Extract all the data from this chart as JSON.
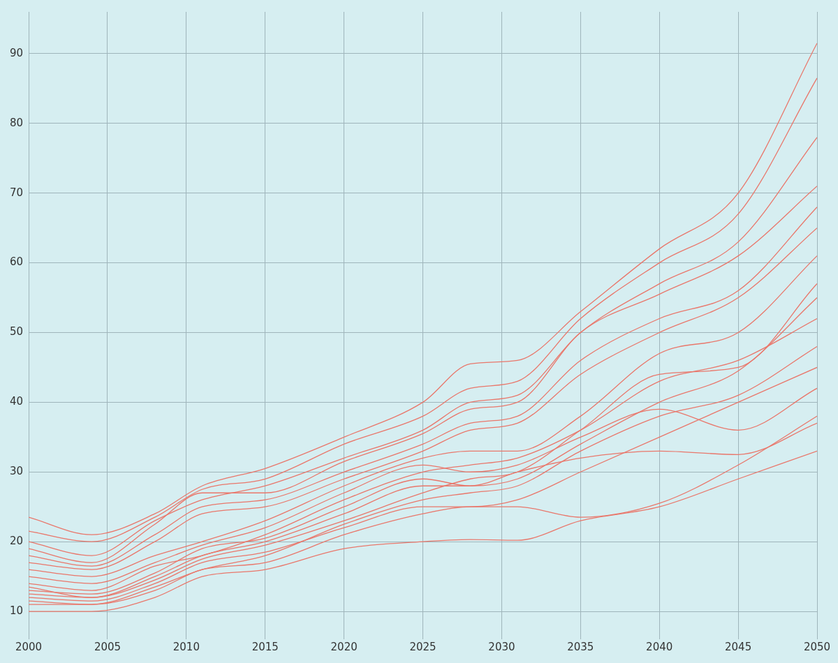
{
  "chart_data": {
    "type": "line",
    "x": [
      2000,
      2004,
      2008,
      2011,
      2015,
      2020,
      2025,
      2028,
      2031,
      2035,
      2040,
      2045,
      2050
    ],
    "xlim": [
      2000,
      2050
    ],
    "xticks": [
      2000,
      2005,
      2010,
      2015,
      2020,
      2025,
      2030,
      2035,
      2040,
      2045,
      2050
    ],
    "ylim": [
      6,
      96
    ],
    "yticks": [
      10,
      20,
      30,
      40,
      50,
      60,
      70,
      80,
      90
    ],
    "grid": true,
    "legend": false,
    "marker": "none",
    "line_style": "solid",
    "series": [
      {
        "color": "#e9776b",
        "values": [
          19,
          17,
          22.5,
          27,
          27,
          31.5,
          35.5,
          39,
          40,
          50,
          55.5,
          61,
          71
        ]
      },
      {
        "color": "#e9776b",
        "values": [
          23.5,
          21,
          24,
          28,
          30.5,
          35,
          40,
          45.5,
          46,
          53,
          62,
          70,
          91.5
        ]
      },
      {
        "color": "#e9776b",
        "values": [
          21.5,
          20,
          23.5,
          27.5,
          29,
          34,
          38,
          42,
          43,
          52,
          60,
          67,
          86.5
        ]
      },
      {
        "color": "#e9776b",
        "values": [
          10,
          10,
          12,
          15,
          16,
          19,
          20,
          20.3,
          20.2,
          23,
          25,
          29,
          33
        ]
      },
      {
        "color": "#e9776b",
        "values": [
          13,
          12.5,
          15.5,
          19,
          20.5,
          25,
          29,
          28,
          29,
          34,
          40,
          44.5,
          55
        ]
      },
      {
        "color": "#e9776b",
        "values": [
          16,
          15,
          18,
          20,
          23,
          28,
          32,
          33,
          33,
          38,
          47,
          50,
          61
        ]
      },
      {
        "color": "#e9776b",
        "values": [
          12,
          11.5,
          14,
          17,
          18.5,
          22,
          25,
          25,
          26,
          30,
          35,
          40,
          45
        ]
      },
      {
        "color": "#e9776b",
        "values": [
          11,
          11,
          13,
          16,
          17,
          21,
          24,
          25,
          25,
          23.5,
          25.5,
          31,
          38
        ]
      },
      {
        "color": "#e9776b",
        "values": [
          14,
          13,
          16.5,
          18,
          21,
          26,
          30,
          31,
          32,
          36,
          43,
          46,
          52
        ]
      },
      {
        "color": "#e9776b",
        "values": [
          17,
          16,
          20,
          24,
          25,
          29,
          33,
          36,
          37,
          44,
          50,
          55,
          65
        ]
      },
      {
        "color": "#e9776b",
        "values": [
          20,
          18,
          23,
          26,
          28,
          32,
          36,
          40,
          41,
          50,
          57,
          63,
          78
        ]
      },
      {
        "color": "#e9776b",
        "values": [
          11.5,
          11,
          13.5,
          16,
          18,
          22.5,
          26,
          27,
          28,
          33,
          38,
          41,
          48
        ]
      },
      {
        "color": "#e9776b",
        "values": [
          15,
          14,
          17,
          19.5,
          22,
          27,
          31,
          30,
          31,
          35,
          39,
          36,
          42
        ]
      },
      {
        "color": "#e9776b",
        "values": [
          13.5,
          12,
          15,
          18,
          20,
          24,
          28,
          28,
          30,
          32,
          33,
          32.5,
          37
        ]
      },
      {
        "color": "#e9776b",
        "values": [
          18,
          16.5,
          21,
          25,
          26,
          30,
          34,
          37,
          38,
          46,
          52,
          56,
          68
        ]
      },
      {
        "color": "#e9776b",
        "values": [
          12.5,
          12,
          14.5,
          17.5,
          19.5,
          23,
          27,
          29,
          30,
          36,
          44,
          45,
          57
        ]
      }
    ]
  }
}
